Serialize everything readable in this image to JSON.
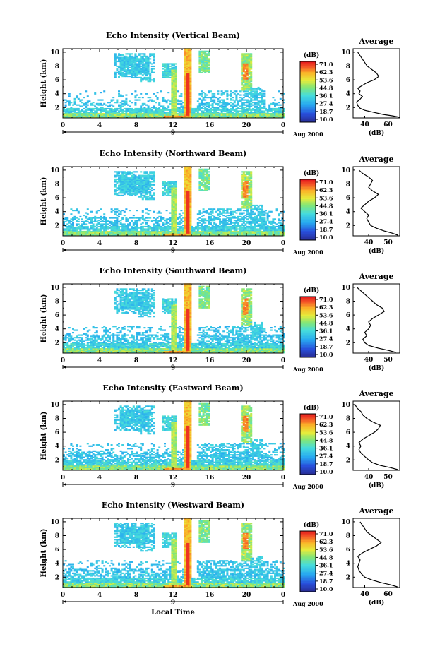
{
  "chart_data": [
    {
      "type": "heatmap",
      "title": "Echo Intensity (Vertical Beam)",
      "ylabel": "Height (km)",
      "xticks": [
        "0",
        "4",
        "8",
        "12",
        "16",
        "20",
        "0"
      ],
      "yticks": [
        "2",
        "4",
        "6",
        "8",
        "10"
      ],
      "date_label": "9",
      "date_suffix": "Aug 2000",
      "xlim": [
        0,
        24
      ],
      "ylim": [
        0.5,
        10.5
      ],
      "colorbar": {
        "unit": "(dB)",
        "levels": [
          "71.0",
          "62.3",
          "53.6",
          "44.8",
          "36.1",
          "27.4",
          "18.7",
          "10.0"
        ]
      },
      "average": {
        "title": "Average",
        "xlabel": "(dB)",
        "xticks": [
          "40",
          "60"
        ],
        "xlim": [
          30,
          70
        ],
        "yticks": [
          "2",
          "4",
          "6",
          "8",
          "10"
        ],
        "profile": [
          [
            70,
            0.6
          ],
          [
            64,
            0.8
          ],
          [
            56,
            1.0
          ],
          [
            48,
            1.3
          ],
          [
            40,
            1.6
          ],
          [
            36,
            1.9
          ],
          [
            34,
            2.3
          ],
          [
            33,
            2.8
          ],
          [
            36,
            3.2
          ],
          [
            38,
            3.6
          ],
          [
            35,
            4.0
          ],
          [
            36,
            4.4
          ],
          [
            34,
            4.8
          ],
          [
            38,
            5.2
          ],
          [
            42,
            5.6
          ],
          [
            48,
            6.0
          ],
          [
            52,
            6.5
          ],
          [
            50,
            7.0
          ],
          [
            46,
            7.5
          ],
          [
            42,
            8.0
          ],
          [
            40,
            8.5
          ],
          [
            38,
            9.0
          ],
          [
            36,
            9.5
          ],
          [
            34,
            10.0
          ]
        ]
      }
    },
    {
      "type": "heatmap",
      "title": "Echo Intensity (Northward Beam)",
      "ylabel": "Height (km)",
      "xticks": [
        "0",
        "4",
        "8",
        "12",
        "16",
        "20",
        "0"
      ],
      "yticks": [
        "2",
        "4",
        "6",
        "8",
        "10"
      ],
      "date_label": "9",
      "date_suffix": "Aug 2000",
      "xlim": [
        0,
        24
      ],
      "ylim": [
        0.5,
        10.5
      ],
      "colorbar": {
        "unit": "(dB)",
        "levels": [
          "71.0",
          "62.3",
          "53.6",
          "44.8",
          "36.1",
          "27.4",
          "18.7",
          "10.0"
        ]
      },
      "average": {
        "title": "Average",
        "xlabel": "(dB)",
        "xticks": [
          "40",
          "50"
        ],
        "xlim": [
          32,
          56
        ],
        "yticks": [
          "2",
          "4",
          "6",
          "8",
          "10"
        ],
        "profile": [
          [
            55,
            0.6
          ],
          [
            52,
            0.9
          ],
          [
            48,
            1.2
          ],
          [
            44,
            1.6
          ],
          [
            41,
            2.0
          ],
          [
            40,
            2.5
          ],
          [
            39,
            3.0
          ],
          [
            40,
            3.5
          ],
          [
            38,
            4.0
          ],
          [
            36,
            4.5
          ],
          [
            38,
            5.0
          ],
          [
            40,
            5.5
          ],
          [
            43,
            6.0
          ],
          [
            45,
            6.5
          ],
          [
            42,
            7.0
          ],
          [
            40,
            7.5
          ],
          [
            41,
            8.0
          ],
          [
            42,
            8.5
          ],
          [
            40,
            9.0
          ],
          [
            37,
            9.5
          ],
          [
            35,
            10.0
          ]
        ]
      }
    },
    {
      "type": "heatmap",
      "title": "Echo Intensity (Southward Beam)",
      "ylabel": "Height (km)",
      "xticks": [
        "0",
        "4",
        "8",
        "12",
        "16",
        "20",
        "0"
      ],
      "yticks": [
        "2",
        "4",
        "6",
        "8",
        "10"
      ],
      "date_label": "9",
      "date_suffix": "Aug 2000",
      "xlim": [
        0,
        24
      ],
      "ylim": [
        0.5,
        10.5
      ],
      "colorbar": {
        "unit": "(dB)",
        "levels": [
          "71.0",
          "62.3",
          "53.6",
          "44.8",
          "36.1",
          "27.4",
          "18.7",
          "10.0"
        ]
      },
      "average": {
        "title": "Average",
        "xlabel": "(dB)",
        "xticks": [
          "40",
          "50"
        ],
        "xlim": [
          32,
          56
        ],
        "yticks": [
          "2",
          "4",
          "6",
          "8",
          "10"
        ],
        "profile": [
          [
            54,
            0.6
          ],
          [
            50,
            0.9
          ],
          [
            45,
            1.2
          ],
          [
            40,
            1.6
          ],
          [
            38,
            2.0
          ],
          [
            37,
            2.5
          ],
          [
            39,
            3.0
          ],
          [
            38,
            3.5
          ],
          [
            40,
            4.0
          ],
          [
            41,
            4.5
          ],
          [
            40,
            5.0
          ],
          [
            42,
            5.5
          ],
          [
            45,
            6.0
          ],
          [
            48,
            6.5
          ],
          [
            47,
            7.0
          ],
          [
            44,
            7.5
          ],
          [
            42,
            8.0
          ],
          [
            40,
            8.5
          ],
          [
            38,
            9.0
          ],
          [
            36,
            9.5
          ],
          [
            34,
            10.0
          ]
        ]
      }
    },
    {
      "type": "heatmap",
      "title": "Echo Intensity (Eastward Beam)",
      "ylabel": "Height (km)",
      "xticks": [
        "0",
        "4",
        "8",
        "12",
        "16",
        "20",
        "0"
      ],
      "yticks": [
        "2",
        "4",
        "6",
        "8",
        "10"
      ],
      "date_label": "9",
      "date_suffix": "Aug 2000",
      "xlim": [
        0,
        24
      ],
      "ylim": [
        0.5,
        10.5
      ],
      "colorbar": {
        "unit": "(dB)",
        "levels": [
          "71.0",
          "62.3",
          "53.6",
          "44.8",
          "36.1",
          "27.4",
          "18.7",
          "10.0"
        ]
      },
      "average": {
        "title": "Average",
        "xlabel": "(dB)",
        "xticks": [
          "40",
          "50"
        ],
        "xlim": [
          32,
          56
        ],
        "yticks": [
          "2",
          "4",
          "6",
          "8",
          "10"
        ],
        "profile": [
          [
            55,
            0.6
          ],
          [
            51,
            0.9
          ],
          [
            46,
            1.2
          ],
          [
            42,
            1.6
          ],
          [
            40,
            2.0
          ],
          [
            38,
            2.5
          ],
          [
            36,
            3.0
          ],
          [
            35,
            3.5
          ],
          [
            36,
            4.0
          ],
          [
            35,
            4.5
          ],
          [
            37,
            5.0
          ],
          [
            40,
            5.5
          ],
          [
            43,
            6.0
          ],
          [
            45,
            6.5
          ],
          [
            46,
            7.0
          ],
          [
            42,
            7.5
          ],
          [
            39,
            8.0
          ],
          [
            37,
            8.5
          ],
          [
            36,
            9.0
          ],
          [
            34,
            9.5
          ],
          [
            33,
            10.0
          ]
        ]
      }
    },
    {
      "type": "heatmap",
      "title": "Echo Intensity (Westward Beam)",
      "ylabel": "Height (km)",
      "xlabel": "Local Time",
      "xticks": [
        "0",
        "4",
        "8",
        "12",
        "16",
        "20",
        "0"
      ],
      "yticks": [
        "2",
        "4",
        "6",
        "8",
        "10"
      ],
      "date_label": "9",
      "date_suffix": "Aug 2000",
      "xlim": [
        0,
        24
      ],
      "ylim": [
        0.5,
        10.5
      ],
      "colorbar": {
        "unit": "(dB)",
        "levels": [
          "71.0",
          "62.3",
          "53.6",
          "44.8",
          "36.1",
          "27.4",
          "18.7",
          "10.0"
        ]
      },
      "average": {
        "title": "Average",
        "xlabel": "(dB)",
        "xticks": [
          "40",
          "60"
        ],
        "xlim": [
          30,
          70
        ],
        "yticks": [
          "2",
          "4",
          "6",
          "8",
          "10"
        ],
        "profile": [
          [
            68,
            0.6
          ],
          [
            62,
            0.9
          ],
          [
            54,
            1.2
          ],
          [
            46,
            1.6
          ],
          [
            40,
            2.0
          ],
          [
            37,
            2.5
          ],
          [
            35,
            3.0
          ],
          [
            34,
            3.5
          ],
          [
            35,
            4.0
          ],
          [
            36,
            4.5
          ],
          [
            34,
            5.0
          ],
          [
            38,
            5.5
          ],
          [
            44,
            6.0
          ],
          [
            50,
            6.5
          ],
          [
            54,
            7.0
          ],
          [
            50,
            7.5
          ],
          [
            46,
            8.0
          ],
          [
            42,
            8.5
          ],
          [
            40,
            9.0
          ],
          [
            38,
            9.5
          ],
          [
            36,
            10.0
          ]
        ]
      }
    }
  ]
}
